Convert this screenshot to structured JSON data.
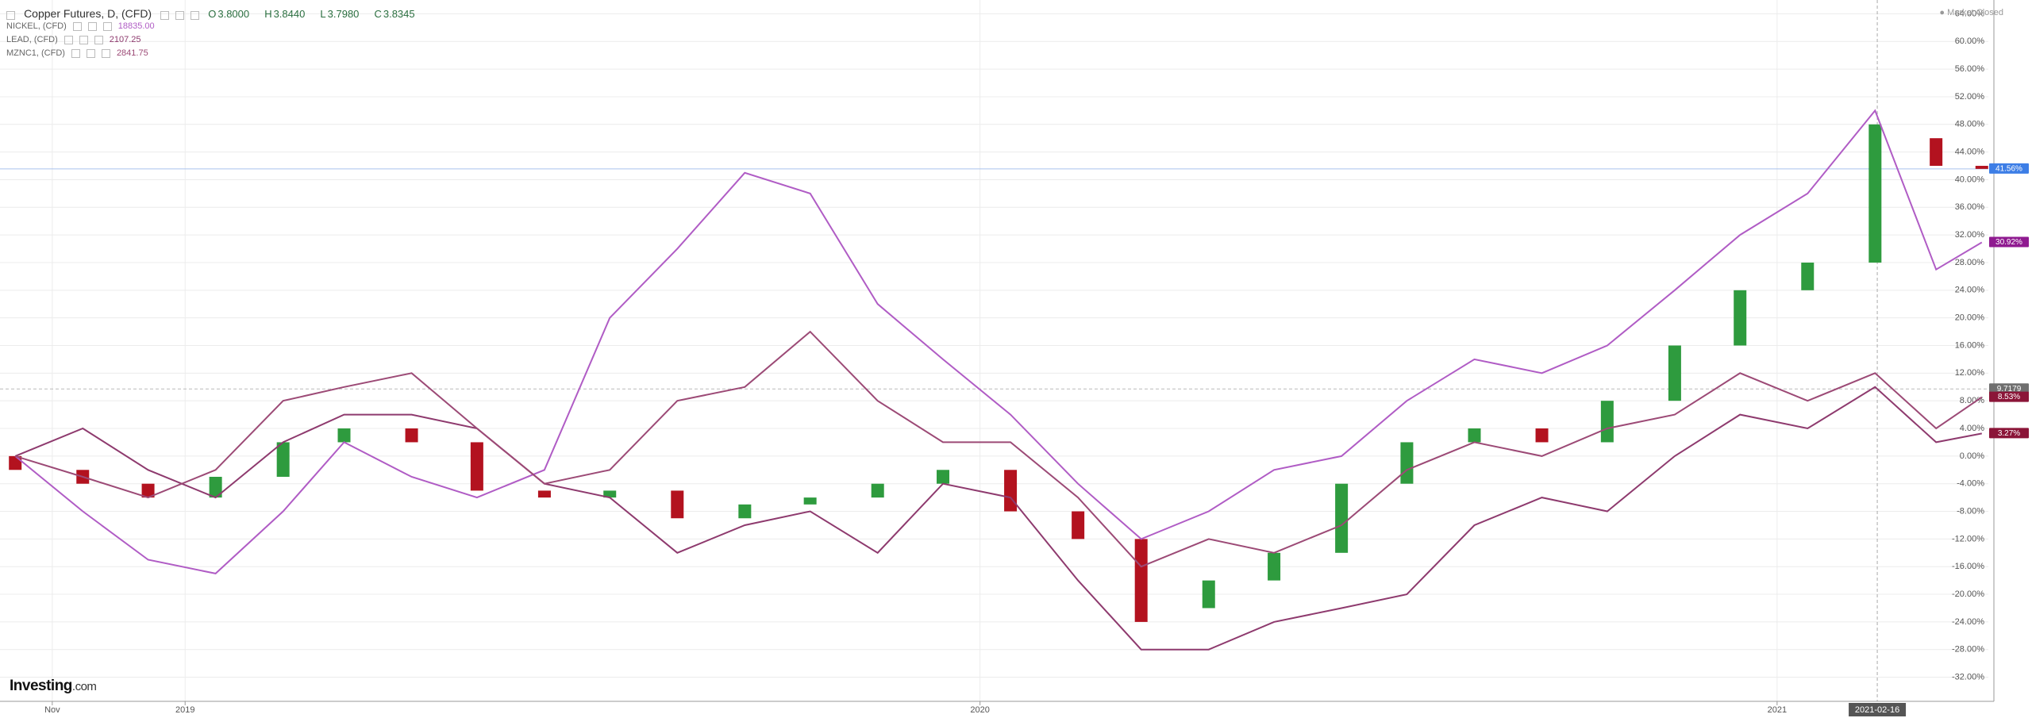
{
  "market_status": "● Market Closed",
  "logo": {
    "main": "Investing",
    "suffix": ".com"
  },
  "chart_data": {
    "type": "line",
    "title": "Copper Futures, D, (CFD)",
    "ohlc": [
      {
        "key": "O",
        "value": "3.8000"
      },
      {
        "key": "H",
        "value": "3.8440"
      },
      {
        "key": "L",
        "value": "3.7980"
      },
      {
        "key": "C",
        "value": "3.8345"
      }
    ],
    "x": [
      "2018-10-15",
      "2018-11-15",
      "2018-12-15",
      "2019-01-15",
      "2019-02-15",
      "2019-03-15",
      "2019-04-15",
      "2019-05-15",
      "2019-06-15",
      "2019-07-15",
      "2019-08-15",
      "2019-09-15",
      "2019-10-15",
      "2019-11-15",
      "2019-12-15",
      "2020-01-15",
      "2020-02-15",
      "2020-03-15",
      "2020-04-15",
      "2020-05-15",
      "2020-06-15",
      "2020-07-15",
      "2020-08-15",
      "2020-09-15",
      "2020-10-15",
      "2020-11-15",
      "2020-12-15",
      "2021-01-15",
      "2021-02-15",
      "2021-03-15",
      "2021-04-05"
    ],
    "xlim": [
      "2018-10-08",
      "2021-04-08"
    ],
    "xticks": [
      {
        "value": "2018-11-01",
        "label": "Nov"
      },
      {
        "value": "2019-01-01",
        "label": "2019"
      },
      {
        "value": "2020-01-01",
        "label": "2020"
      },
      {
        "value": "2021-01-01",
        "label": "2021"
      }
    ],
    "crosshair": {
      "x": "2021-02-16",
      "label": "2021-02-16"
    },
    "ylim": [
      -34,
      66
    ],
    "yticks": [
      {
        "value": -32,
        "label": "-32.00%"
      },
      {
        "value": -28,
        "label": "-28.00%"
      },
      {
        "value": -24,
        "label": "-24.00%"
      },
      {
        "value": -20,
        "label": "-20.00%"
      },
      {
        "value": -16,
        "label": "-16.00%"
      },
      {
        "value": -12,
        "label": "-12.00%"
      },
      {
        "value": -8,
        "label": "-8.00%"
      },
      {
        "value": -4,
        "label": "-4.00%"
      },
      {
        "value": 0,
        "label": "0.00%"
      },
      {
        "value": 4,
        "label": "4.00%"
      },
      {
        "value": 8,
        "label": "8.00%"
      },
      {
        "value": 12,
        "label": "12.00%"
      },
      {
        "value": 16,
        "label": "16.00%"
      },
      {
        "value": 20,
        "label": "20.00%"
      },
      {
        "value": 24,
        "label": "24.00%"
      },
      {
        "value": 28,
        "label": "28.00%"
      },
      {
        "value": 32,
        "label": "32.00%"
      },
      {
        "value": 36,
        "label": "36.00%"
      },
      {
        "value": 40,
        "label": "40.00%"
      },
      {
        "value": 44,
        "label": "44.00%"
      },
      {
        "value": 48,
        "label": "48.00%"
      },
      {
        "value": 52,
        "label": "52.00%"
      },
      {
        "value": 56,
        "label": "56.00%"
      },
      {
        "value": 60,
        "label": "60.00%"
      },
      {
        "value": 64,
        "label": "64.00%"
      }
    ],
    "grid": true,
    "candles": {
      "up_color": "#2e9b3e",
      "down_color": "#b3121f",
      "open": [
        0,
        -2,
        -4,
        -6,
        -3,
        2,
        4,
        2,
        -5,
        -6,
        -5,
        -9,
        -7,
        -6,
        -4,
        -2,
        -8,
        -12,
        -22,
        -18,
        -14,
        -4,
        2,
        4,
        2,
        8,
        16,
        24,
        28,
        46,
        42
      ],
      "close": [
        -2,
        -4,
        -6,
        -3,
        2,
        4,
        2,
        -5,
        -6,
        -5,
        -9,
        -7,
        -6,
        -4,
        -2,
        -8,
        -12,
        -24,
        -18,
        -14,
        -4,
        2,
        4,
        2,
        8,
        16,
        24,
        28,
        48,
        42,
        41.56
      ]
    },
    "series": [
      {
        "name": "NICKEL, (CFD)",
        "last": "18835.00",
        "color": "#b05cc5",
        "values": [
          0,
          -8,
          -15,
          -17,
          -8,
          2,
          -3,
          -6,
          -2,
          20,
          30,
          41,
          38,
          22,
          14,
          6,
          -4,
          -12,
          -8,
          -2,
          0,
          8,
          14,
          12,
          16,
          24,
          32,
          38,
          50,
          27,
          30.92
        ]
      },
      {
        "name": "LEAD, (CFD)",
        "last": "2107.25",
        "color": "#8e3a6e",
        "values": [
          0,
          4,
          -2,
          -6,
          2,
          6,
          6,
          4,
          -4,
          -6,
          -14,
          -10,
          -8,
          -14,
          -4,
          -6,
          -18,
          -28,
          -28,
          -24,
          -22,
          -20,
          -10,
          -6,
          -8,
          0,
          6,
          4,
          10,
          2,
          3.27
        ]
      },
      {
        "name": "MZNC1, (CFD)",
        "last": "2841.75",
        "color": "#9c4a76",
        "values": [
          0,
          -3,
          -6,
          -2,
          8,
          10,
          12,
          4,
          -4,
          -2,
          8,
          10,
          18,
          8,
          2,
          2,
          -6,
          -16,
          -12,
          -14,
          -10,
          -2,
          2,
          0,
          4,
          6,
          12,
          8,
          12,
          4,
          8.53
        ]
      }
    ],
    "price_labels": [
      {
        "value": 41.56,
        "label": "41.56%",
        "color": "#3d7ee6",
        "line": "solid"
      },
      {
        "value": 30.92,
        "label": "30.92%",
        "color": "#8f1a90",
        "line": "none"
      },
      {
        "value": 9.7179,
        "label": "9.7179",
        "color": "#6f6f6f",
        "line": "dashed"
      },
      {
        "value": 8.53,
        "label": "8.53%",
        "color": "#8b1538",
        "line": "none"
      },
      {
        "value": 3.27,
        "label": "3.27%",
        "color": "#8b1538",
        "line": "none"
      }
    ]
  }
}
